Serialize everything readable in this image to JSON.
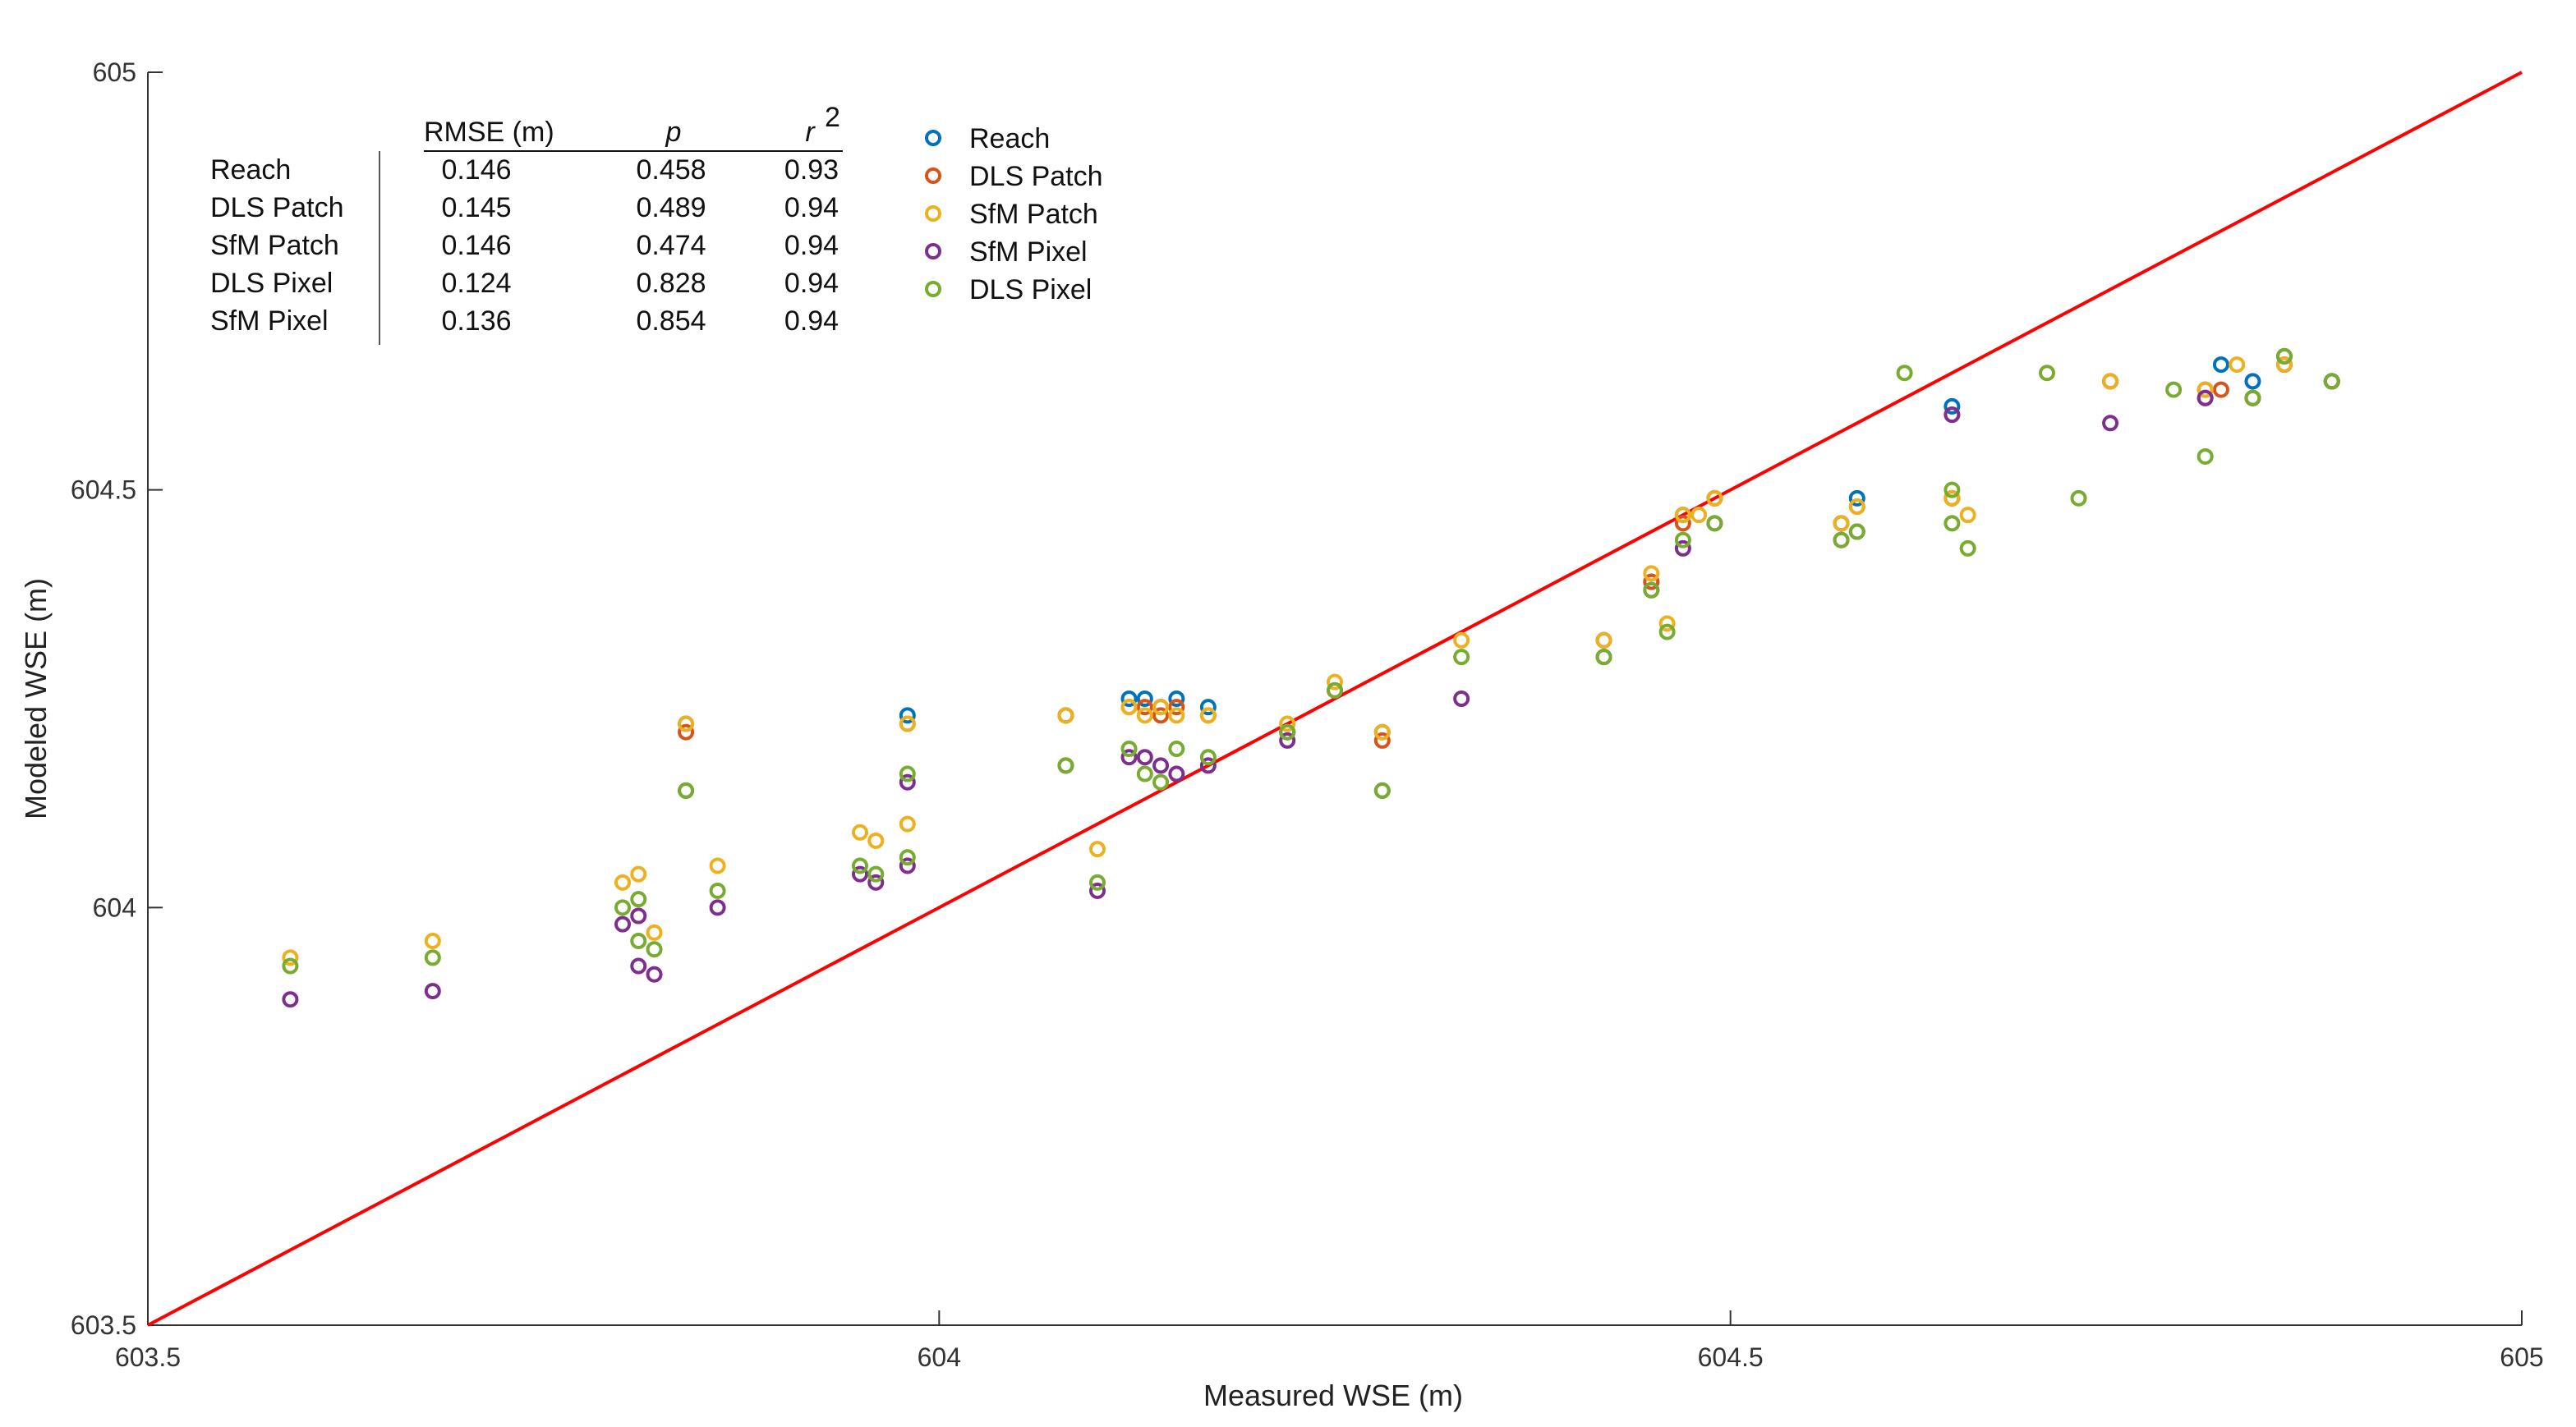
{
  "chart_data": {
    "type": "scatter",
    "xlabel": "Measured WSE (m)",
    "ylabel": "Modeled WSE (m)",
    "xlim": [
      603.5,
      605
    ],
    "ylim": [
      603.5,
      605
    ],
    "xticks": [
      "603.5",
      "604",
      "604.5",
      "605"
    ],
    "yticks": [
      "603.5",
      "604",
      "604.5",
      "605"
    ],
    "grid": false,
    "reference_line": {
      "name": "1:1 line",
      "x": [
        603.5,
        605
      ],
      "y": [
        603.5,
        605
      ],
      "color": "#ff0000"
    },
    "legend_position": "top-left",
    "stats_table": {
      "headers": [
        "RMSE (m)",
        "p",
        "r",
        "2"
      ],
      "rows": [
        {
          "label": "Reach",
          "rmse": "0.146",
          "p": "0.458",
          "r2": "0.93"
        },
        {
          "label": "DLS Patch",
          "rmse": "0.145",
          "p": "0.489",
          "r2": "0.94"
        },
        {
          "label": "SfM Patch",
          "rmse": "0.146",
          "p": "0.474",
          "r2": "0.94"
        },
        {
          "label": "DLS Pixel",
          "rmse": "0.124",
          "p": "0.828",
          "r2": "0.94"
        },
        {
          "label": "SfM Pixel",
          "rmse": "0.136",
          "p": "0.854",
          "r2": "0.94"
        }
      ]
    },
    "series": [
      {
        "name": "Reach",
        "color": "#0072bd",
        "points": [
          [
            603.84,
            604.22
          ],
          [
            603.98,
            604.23
          ],
          [
            604.08,
            604.23
          ],
          [
            604.12,
            604.25
          ],
          [
            604.13,
            604.25
          ],
          [
            604.14,
            604.24
          ],
          [
            604.15,
            604.25
          ],
          [
            604.17,
            604.24
          ],
          [
            604.22,
            604.21
          ],
          [
            604.28,
            604.21
          ],
          [
            604.42,
            604.32
          ],
          [
            604.45,
            604.39
          ],
          [
            604.47,
            604.47
          ],
          [
            604.49,
            604.49
          ],
          [
            604.57,
            604.46
          ],
          [
            604.58,
            604.49
          ],
          [
            604.64,
            604.49
          ],
          [
            604.64,
            604.6
          ],
          [
            604.74,
            604.63
          ],
          [
            604.8,
            604.62
          ],
          [
            604.81,
            604.65
          ],
          [
            604.83,
            604.63
          ],
          [
            604.85,
            604.65
          ],
          [
            604.88,
            604.63
          ]
        ]
      },
      {
        "name": "DLS Patch",
        "color": "#d95319",
        "points": [
          [
            603.84,
            604.21
          ],
          [
            603.98,
            604.22
          ],
          [
            604.08,
            604.23
          ],
          [
            604.12,
            604.24
          ],
          [
            604.13,
            604.24
          ],
          [
            604.14,
            604.23
          ],
          [
            604.15,
            604.24
          ],
          [
            604.17,
            604.23
          ],
          [
            604.22,
            604.21
          ],
          [
            604.28,
            604.2
          ],
          [
            604.42,
            604.32
          ],
          [
            604.45,
            604.39
          ],
          [
            604.47,
            604.46
          ],
          [
            604.49,
            604.49
          ],
          [
            604.57,
            604.46
          ],
          [
            604.58,
            604.48
          ],
          [
            604.64,
            604.49
          ],
          [
            604.64,
            604.59
          ],
          [
            604.74,
            604.63
          ],
          [
            604.8,
            604.61
          ],
          [
            604.81,
            604.62
          ],
          [
            604.83,
            604.61
          ],
          [
            604.85,
            604.65
          ],
          [
            604.88,
            604.63
          ]
        ]
      },
      {
        "name": "SfM Patch",
        "color": "#edb120",
        "points": [
          [
            603.59,
            603.94
          ],
          [
            603.68,
            603.96
          ],
          [
            603.8,
            604.03
          ],
          [
            603.81,
            604.04
          ],
          [
            603.82,
            603.97
          ],
          [
            603.84,
            604.22
          ],
          [
            603.86,
            604.05
          ],
          [
            603.95,
            604.09
          ],
          [
            603.96,
            604.08
          ],
          [
            603.98,
            604.1
          ],
          [
            603.98,
            604.22
          ],
          [
            604.08,
            604.23
          ],
          [
            604.1,
            604.07
          ],
          [
            604.12,
            604.24
          ],
          [
            604.13,
            604.23
          ],
          [
            604.14,
            604.24
          ],
          [
            604.15,
            604.23
          ],
          [
            604.17,
            604.23
          ],
          [
            604.22,
            604.22
          ],
          [
            604.25,
            604.27
          ],
          [
            604.28,
            604.21
          ],
          [
            604.33,
            604.32
          ],
          [
            604.42,
            604.32
          ],
          [
            604.45,
            604.4
          ],
          [
            604.46,
            604.34
          ],
          [
            604.47,
            604.47
          ],
          [
            604.48,
            604.47
          ],
          [
            604.49,
            604.49
          ],
          [
            604.57,
            604.46
          ],
          [
            604.58,
            604.48
          ],
          [
            604.64,
            604.49
          ],
          [
            604.65,
            604.47
          ],
          [
            604.74,
            604.63
          ],
          [
            604.8,
            604.62
          ],
          [
            604.82,
            604.65
          ],
          [
            604.85,
            604.65
          ],
          [
            604.88,
            604.63
          ]
        ]
      },
      {
        "name": "SfM Pixel",
        "color": "#7e2f8e",
        "points": [
          [
            603.59,
            603.89
          ],
          [
            603.68,
            603.9
          ],
          [
            603.8,
            603.98
          ],
          [
            603.81,
            603.93
          ],
          [
            603.81,
            603.99
          ],
          [
            603.82,
            603.92
          ],
          [
            603.84,
            604.14
          ],
          [
            603.86,
            604.0
          ],
          [
            603.95,
            604.04
          ],
          [
            603.96,
            604.03
          ],
          [
            603.98,
            604.05
          ],
          [
            603.98,
            604.15
          ],
          [
            604.08,
            604.17
          ],
          [
            604.1,
            604.02
          ],
          [
            604.12,
            604.18
          ],
          [
            604.13,
            604.18
          ],
          [
            604.14,
            604.17
          ],
          [
            604.15,
            604.16
          ],
          [
            604.17,
            604.17
          ],
          [
            604.22,
            604.2
          ],
          [
            604.25,
            604.26
          ],
          [
            604.28,
            604.14
          ],
          [
            604.33,
            604.25
          ],
          [
            604.42,
            604.3
          ],
          [
            604.45,
            604.38
          ],
          [
            604.47,
            604.43
          ],
          [
            604.49,
            604.46
          ],
          [
            604.57,
            604.44
          ],
          [
            604.58,
            604.45
          ],
          [
            604.64,
            604.59
          ],
          [
            604.74,
            604.58
          ],
          [
            604.8,
            604.61
          ],
          [
            604.83,
            604.61
          ],
          [
            604.85,
            604.66
          ],
          [
            604.88,
            604.63
          ]
        ]
      },
      {
        "name": "DLS Pixel",
        "color": "#77ac30",
        "points": [
          [
            603.59,
            603.93
          ],
          [
            603.68,
            603.94
          ],
          [
            603.8,
            604.0
          ],
          [
            603.81,
            603.96
          ],
          [
            603.81,
            604.01
          ],
          [
            603.82,
            603.95
          ],
          [
            603.84,
            604.14
          ],
          [
            603.86,
            604.02
          ],
          [
            603.95,
            604.05
          ],
          [
            603.96,
            604.04
          ],
          [
            603.98,
            604.06
          ],
          [
            603.98,
            604.16
          ],
          [
            604.08,
            604.17
          ],
          [
            604.1,
            604.03
          ],
          [
            604.12,
            604.19
          ],
          [
            604.13,
            604.16
          ],
          [
            604.14,
            604.15
          ],
          [
            604.15,
            604.19
          ],
          [
            604.17,
            604.18
          ],
          [
            604.22,
            604.21
          ],
          [
            604.25,
            604.26
          ],
          [
            604.28,
            604.14
          ],
          [
            604.33,
            604.3
          ],
          [
            604.42,
            604.3
          ],
          [
            604.45,
            604.38
          ],
          [
            604.46,
            604.33
          ],
          [
            604.47,
            604.44
          ],
          [
            604.49,
            604.46
          ],
          [
            604.57,
            604.44
          ],
          [
            604.58,
            604.45
          ],
          [
            604.61,
            604.64
          ],
          [
            604.64,
            604.46
          ],
          [
            604.64,
            604.5
          ],
          [
            604.65,
            604.43
          ],
          [
            604.7,
            604.64
          ],
          [
            604.72,
            604.49
          ],
          [
            604.78,
            604.62
          ],
          [
            604.8,
            604.54
          ],
          [
            604.83,
            604.61
          ],
          [
            604.85,
            604.66
          ],
          [
            604.88,
            604.63
          ]
        ]
      }
    ]
  }
}
